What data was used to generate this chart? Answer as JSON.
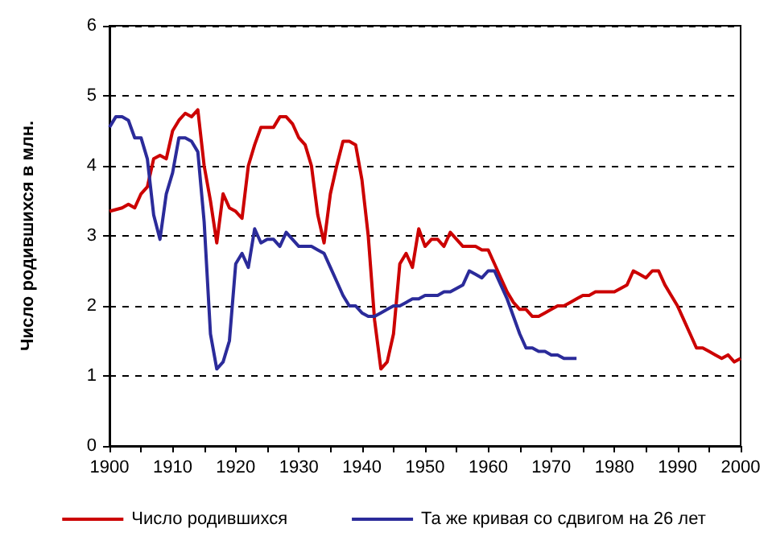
{
  "chart_data": {
    "type": "line",
    "ylabel": "Число родившихся в млн.",
    "legend": "bottom",
    "grid": "y",
    "marker": "none",
    "line_style": "solid",
    "xlim": [
      1900,
      2000
    ],
    "xticks": [
      1900,
      {
        "value": 1905,
        "label": null
      },
      1910,
      {
        "value": 1915,
        "label": null
      },
      1920,
      {
        "value": 1925,
        "label": null
      },
      1930,
      {
        "value": 1935,
        "label": null
      },
      1940,
      {
        "value": 1945,
        "label": null
      },
      1950,
      {
        "value": 1955,
        "label": null
      },
      1960,
      {
        "value": 1965,
        "label": null
      },
      1970,
      {
        "value": 1975,
        "label": null
      },
      1980,
      {
        "value": 1985,
        "label": null
      },
      1990,
      {
        "value": 1995,
        "label": null
      },
      2000
    ],
    "ylim": [
      0,
      6
    ],
    "yticks": [
      0,
      1,
      2,
      3,
      4,
      5,
      6
    ],
    "series": [
      {
        "name": "Число родившихся",
        "color": "#cc0000",
        "x": [
          1900,
          1902,
          1903,
          1904,
          1905,
          1906,
          1907,
          1908,
          1909,
          1910,
          1911,
          1912,
          1913,
          1914,
          1915,
          1916,
          1917,
          1918,
          1919,
          1920,
          1921,
          1922,
          1923,
          1924,
          1925,
          1926,
          1927,
          1928,
          1929,
          1930,
          1931,
          1932,
          1933,
          1934,
          1935,
          1936,
          1937,
          1938,
          1939,
          1940,
          1941,
          1942,
          1943,
          1944,
          1945,
          1946,
          1947,
          1948,
          1949,
          1950,
          1951,
          1952,
          1953,
          1954,
          1955,
          1956,
          1957,
          1958,
          1959,
          1960,
          1961,
          1962,
          1963,
          1964,
          1965,
          1966,
          1967,
          1968,
          1969,
          1970,
          1971,
          1972,
          1973,
          1974,
          1975,
          1976,
          1977,
          1978,
          1979,
          1980,
          1981,
          1982,
          1983,
          1984,
          1985,
          1986,
          1987,
          1988,
          1989,
          1990,
          1991,
          1992,
          1993,
          1994,
          1995,
          1996,
          1997,
          1998,
          1999,
          2000
        ],
        "values": [
          3.35,
          3.4,
          3.45,
          3.4,
          3.6,
          3.7,
          4.1,
          4.15,
          4.1,
          4.5,
          4.65,
          4.75,
          4.7,
          4.8,
          4.0,
          3.5,
          2.9,
          3.6,
          3.4,
          3.35,
          3.25,
          4.0,
          4.3,
          4.55,
          4.55,
          4.55,
          4.7,
          4.7,
          4.6,
          4.4,
          4.3,
          4.0,
          3.3,
          2.9,
          3.6,
          4.0,
          4.35,
          4.35,
          4.3,
          3.8,
          3.0,
          1.8,
          1.1,
          1.2,
          1.6,
          2.6,
          2.75,
          2.55,
          3.1,
          2.85,
          2.95,
          2.95,
          2.85,
          3.05,
          2.95,
          2.85,
          2.85,
          2.85,
          2.8,
          2.8,
          2.6,
          2.4,
          2.2,
          2.05,
          1.95,
          1.95,
          1.85,
          1.85,
          1.9,
          1.95,
          2.0,
          2.0,
          2.05,
          2.1,
          2.15,
          2.15,
          2.2,
          2.2,
          2.2,
          2.2,
          2.25,
          2.3,
          2.5,
          2.45,
          2.4,
          2.5,
          2.5,
          2.3,
          2.15,
          2.0,
          1.8,
          1.6,
          1.4,
          1.4,
          1.35,
          1.3,
          1.25,
          1.3,
          1.2,
          1.25
        ]
      },
      {
        "name": "Та же кривая со сдвигом на 26 лет",
        "color": "#2b2b9a",
        "x": [
          1900,
          1901,
          1902,
          1903,
          1904,
          1905,
          1906,
          1907,
          1908,
          1909,
          1910,
          1911,
          1912,
          1913,
          1914,
          1915,
          1916,
          1917,
          1918,
          1919,
          1920,
          1921,
          1922,
          1923,
          1924,
          1925,
          1926,
          1927,
          1928,
          1929,
          1930,
          1931,
          1932,
          1933,
          1934,
          1935,
          1936,
          1937,
          1938,
          1939,
          1940,
          1941,
          1942,
          1943,
          1944,
          1945,
          1946,
          1947,
          1948,
          1949,
          1950,
          1951,
          1952,
          1953,
          1954,
          1955,
          1956,
          1957,
          1958,
          1959,
          1960,
          1961,
          1962,
          1963,
          1964,
          1965,
          1966,
          1967,
          1968,
          1969,
          1970,
          1971,
          1972,
          1973,
          1974
        ],
        "values": [
          4.55,
          4.7,
          4.7,
          4.65,
          4.4,
          4.4,
          4.1,
          3.3,
          2.95,
          3.6,
          3.9,
          4.4,
          4.4,
          4.35,
          4.2,
          3.2,
          1.6,
          1.1,
          1.2,
          1.5,
          2.6,
          2.75,
          2.55,
          3.1,
          2.9,
          2.95,
          2.95,
          2.85,
          3.05,
          2.95,
          2.85,
          2.85,
          2.85,
          2.8,
          2.75,
          2.55,
          2.35,
          2.15,
          2.0,
          2.0,
          1.9,
          1.85,
          1.85,
          1.9,
          1.95,
          2.0,
          2.0,
          2.05,
          2.1,
          2.1,
          2.15,
          2.15,
          2.15,
          2.2,
          2.2,
          2.25,
          2.3,
          2.5,
          2.45,
          2.4,
          2.5,
          2.5,
          2.3,
          2.1,
          1.85,
          1.6,
          1.4,
          1.4,
          1.35,
          1.35,
          1.3,
          1.3,
          1.25,
          1.25,
          1.25
        ]
      }
    ]
  }
}
